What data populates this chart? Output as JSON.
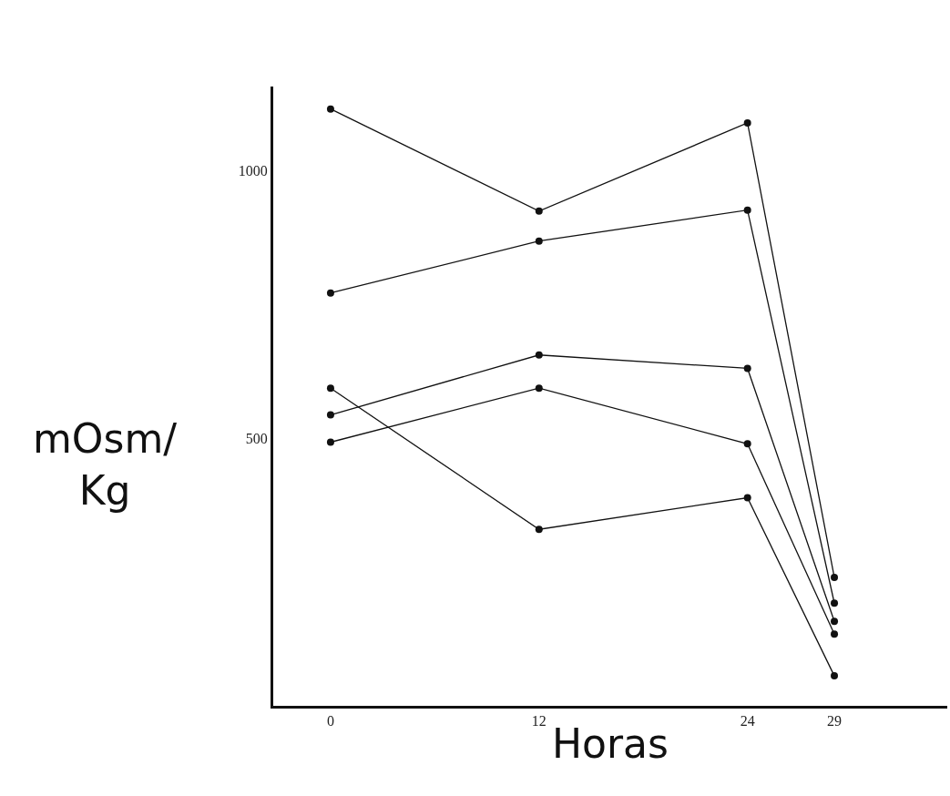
{
  "chart_data": {
    "type": "line",
    "xlabel": "Horas",
    "ylabel": "mOsm/ Kg",
    "x": [
      0,
      12,
      24,
      29
    ],
    "series": [
      {
        "color": "#111111",
        "values": [
          1116,
          925,
          1090,
          240
        ]
      },
      {
        "color": "#111111",
        "values": [
          772,
          869,
          927,
          192
        ]
      },
      {
        "color": "#111111",
        "values": [
          544,
          656,
          631,
          158
        ]
      },
      {
        "color": "#111111",
        "values": [
          493,
          594,
          490,
          134
        ]
      },
      {
        "color": "#111111",
        "values": [
          594,
          330,
          389,
          56
        ]
      }
    ],
    "xlim": [
      -3.3,
      35.5
    ],
    "ylim": [
      0,
      1158
    ],
    "xticks": [
      0,
      12,
      24,
      29
    ],
    "yticks": [
      500,
      1000
    ],
    "grid": false,
    "marker": "circle",
    "line_style": "solid"
  }
}
